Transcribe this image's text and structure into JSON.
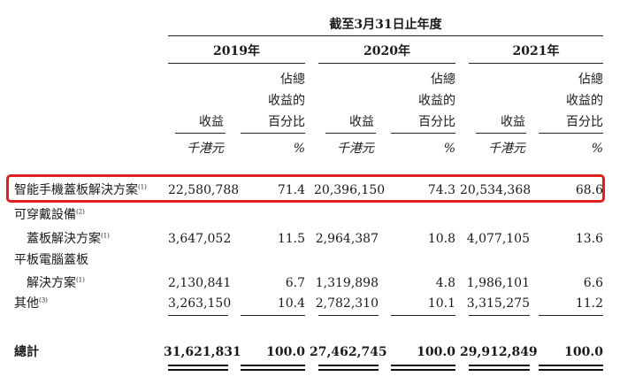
{
  "header": {
    "period_title": "截至3月31日止年度",
    "years": [
      "2019年",
      "2020年",
      "2021年"
    ],
    "col_revenue": "收益",
    "col_pct_line1": "佔總",
    "col_pct_line2": "收益的",
    "col_pct_line3": "百分比",
    "unit_revenue": "千港元",
    "unit_pct": "%"
  },
  "rows": [
    {
      "label_line1": "智能手機蓋板解決方案",
      "label_line2": "",
      "note": "(1)",
      "values": [
        "22,580,788",
        "71.4",
        "20,396,150",
        "74.3",
        "20,534,368",
        "68.6"
      ]
    },
    {
      "label_line1": "可穿戴設備",
      "note_line1": "(2)",
      "label_line2": "蓋板解決方案",
      "note": "(1)",
      "values": [
        "3,647,052",
        "11.5",
        "2,964,387",
        "10.8",
        "4,077,105",
        "13.6"
      ]
    },
    {
      "label_line1": "平板電腦蓋板",
      "label_line2": "解決方案",
      "note": "(1)",
      "values": [
        "2,130,841",
        "6.7",
        "1,319,898",
        "4.8",
        "1,986,101",
        "6.6"
      ]
    },
    {
      "label_line1": "其他",
      "note": "(3)",
      "values": [
        "3,263,150",
        "10.4",
        "2,782,310",
        "10.1",
        "3,315,275",
        "11.2"
      ]
    }
  ],
  "total": {
    "label": "總計",
    "values": [
      "31,621,831",
      "100.0",
      "27,462,745",
      "100.0",
      "29,912,849",
      "100.0"
    ]
  }
}
